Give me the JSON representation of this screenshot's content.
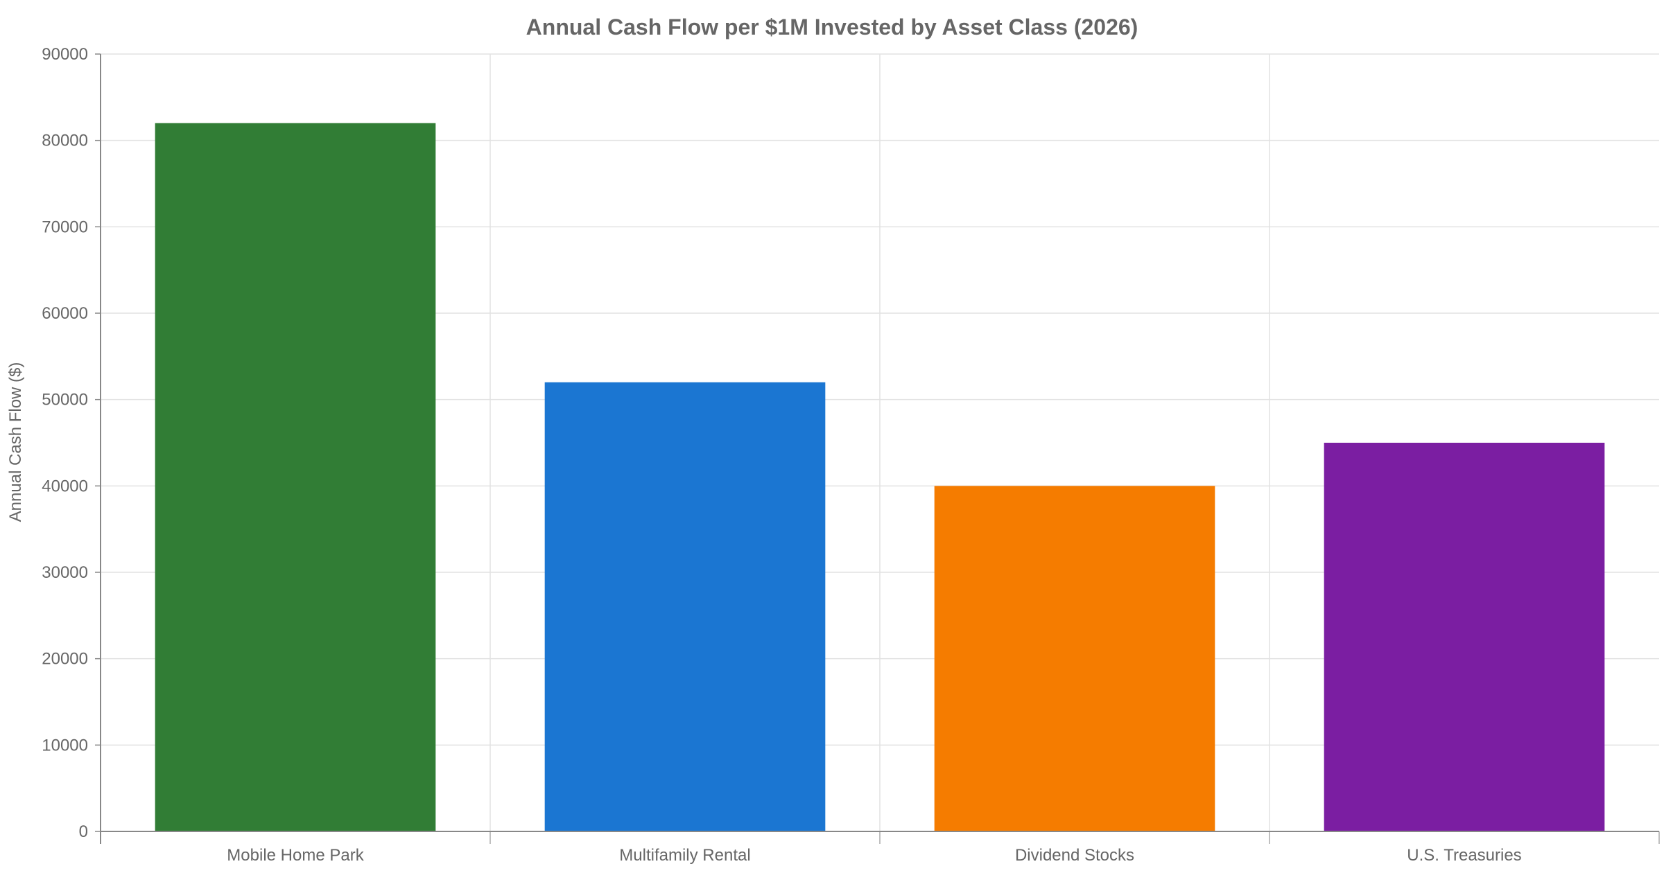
{
  "chart_data": {
    "type": "bar",
    "title": "Annual Cash Flow per $1M Invested by Asset Class (2026)",
    "xlabel": "",
    "ylabel": "Annual Cash Flow ($)",
    "categories": [
      "Mobile Home Park",
      "Multifamily Rental",
      "Dividend Stocks",
      "U.S. Treasuries"
    ],
    "values": [
      82000,
      52000,
      40000,
      45000
    ],
    "colors": [
      "#317d35",
      "#1b76d2",
      "#f57c00",
      "#7b1ea2"
    ],
    "ylim": [
      0,
      90000
    ],
    "yticks": [
      0,
      10000,
      20000,
      30000,
      40000,
      50000,
      60000,
      70000,
      80000,
      90000
    ],
    "grid": true,
    "legend": "none"
  }
}
